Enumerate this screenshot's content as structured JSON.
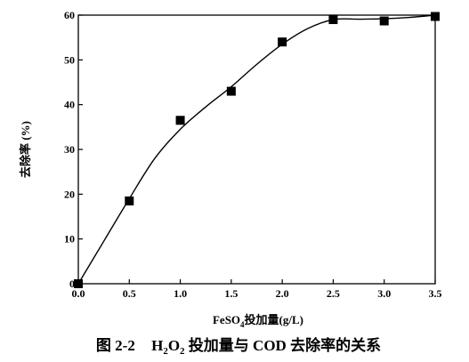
{
  "chart_data": {
    "type": "scatter",
    "xlabel_main": "FeSO",
    "xlabel_sub": "4",
    "xlabel_rest": "投加量(g/L)",
    "ylabel": "去除率 (%)",
    "xlim": [
      0.0,
      3.5
    ],
    "ylim": [
      0,
      60
    ],
    "xticks": [
      "0.0",
      "0.5",
      "1.0",
      "1.5",
      "2.0",
      "2.5",
      "3.0",
      "3.5"
    ],
    "yticks": [
      "0",
      "10",
      "20",
      "30",
      "40",
      "50",
      "60"
    ],
    "grid": false,
    "series": [
      {
        "marker": "square",
        "x": [
          0.0,
          0.5,
          1.0,
          1.5,
          2.0,
          2.5,
          3.0,
          3.5
        ],
        "y": [
          0,
          18.5,
          36.5,
          43,
          54,
          59,
          58.7,
          59.7
        ]
      }
    ],
    "fit_curve": {
      "x": [
        0.0,
        0.25,
        0.5,
        0.75,
        1.0,
        1.25,
        1.5,
        1.75,
        2.0,
        2.25,
        2.5,
        2.75,
        3.0,
        3.25,
        3.5
      ],
      "y": [
        0,
        9.5,
        19,
        28,
        34.5,
        39.5,
        44,
        49,
        53.5,
        57,
        59,
        59.1,
        59.2,
        59.5,
        60
      ]
    }
  },
  "caption": {
    "prefix": "图 2-2",
    "h": "H",
    "h_sub": "2",
    "o": "O",
    "o_sub": "2",
    "rest": " 投加量与 COD 去除率的关系"
  }
}
